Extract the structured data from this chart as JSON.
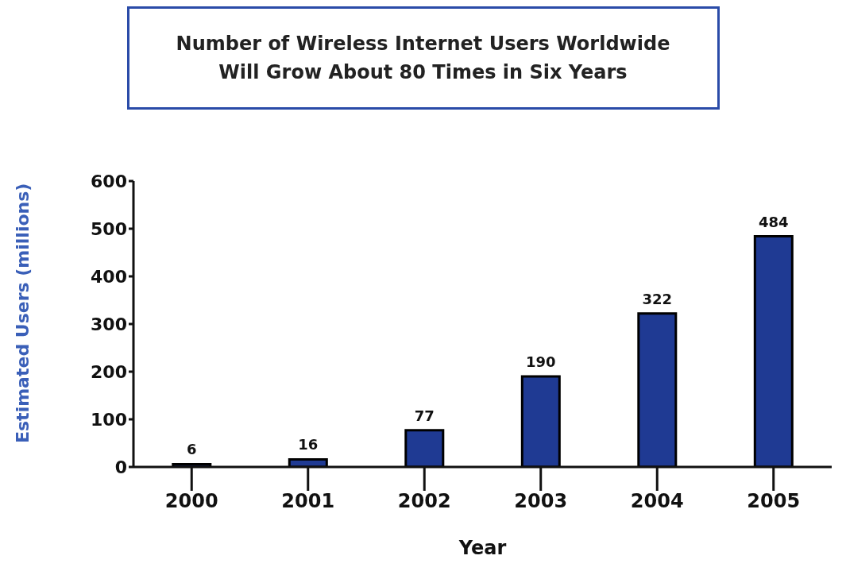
{
  "chart_data": {
    "type": "bar",
    "title": "Number of Wireless Internet Users Worldwide\nWill Grow About 80 Times in Six Years",
    "xlabel": "Year",
    "ylabel": "Estimated Users (millions)",
    "categories": [
      "2000",
      "2001",
      "2002",
      "2003",
      "2004",
      "2005"
    ],
    "values": [
      6,
      16,
      77,
      190,
      322,
      484
    ],
    "color": "#1f3a93",
    "ylim": [
      0,
      600
    ],
    "yticks": [
      0,
      100,
      200,
      300,
      400,
      500,
      600
    ],
    "data_labels": true
  }
}
